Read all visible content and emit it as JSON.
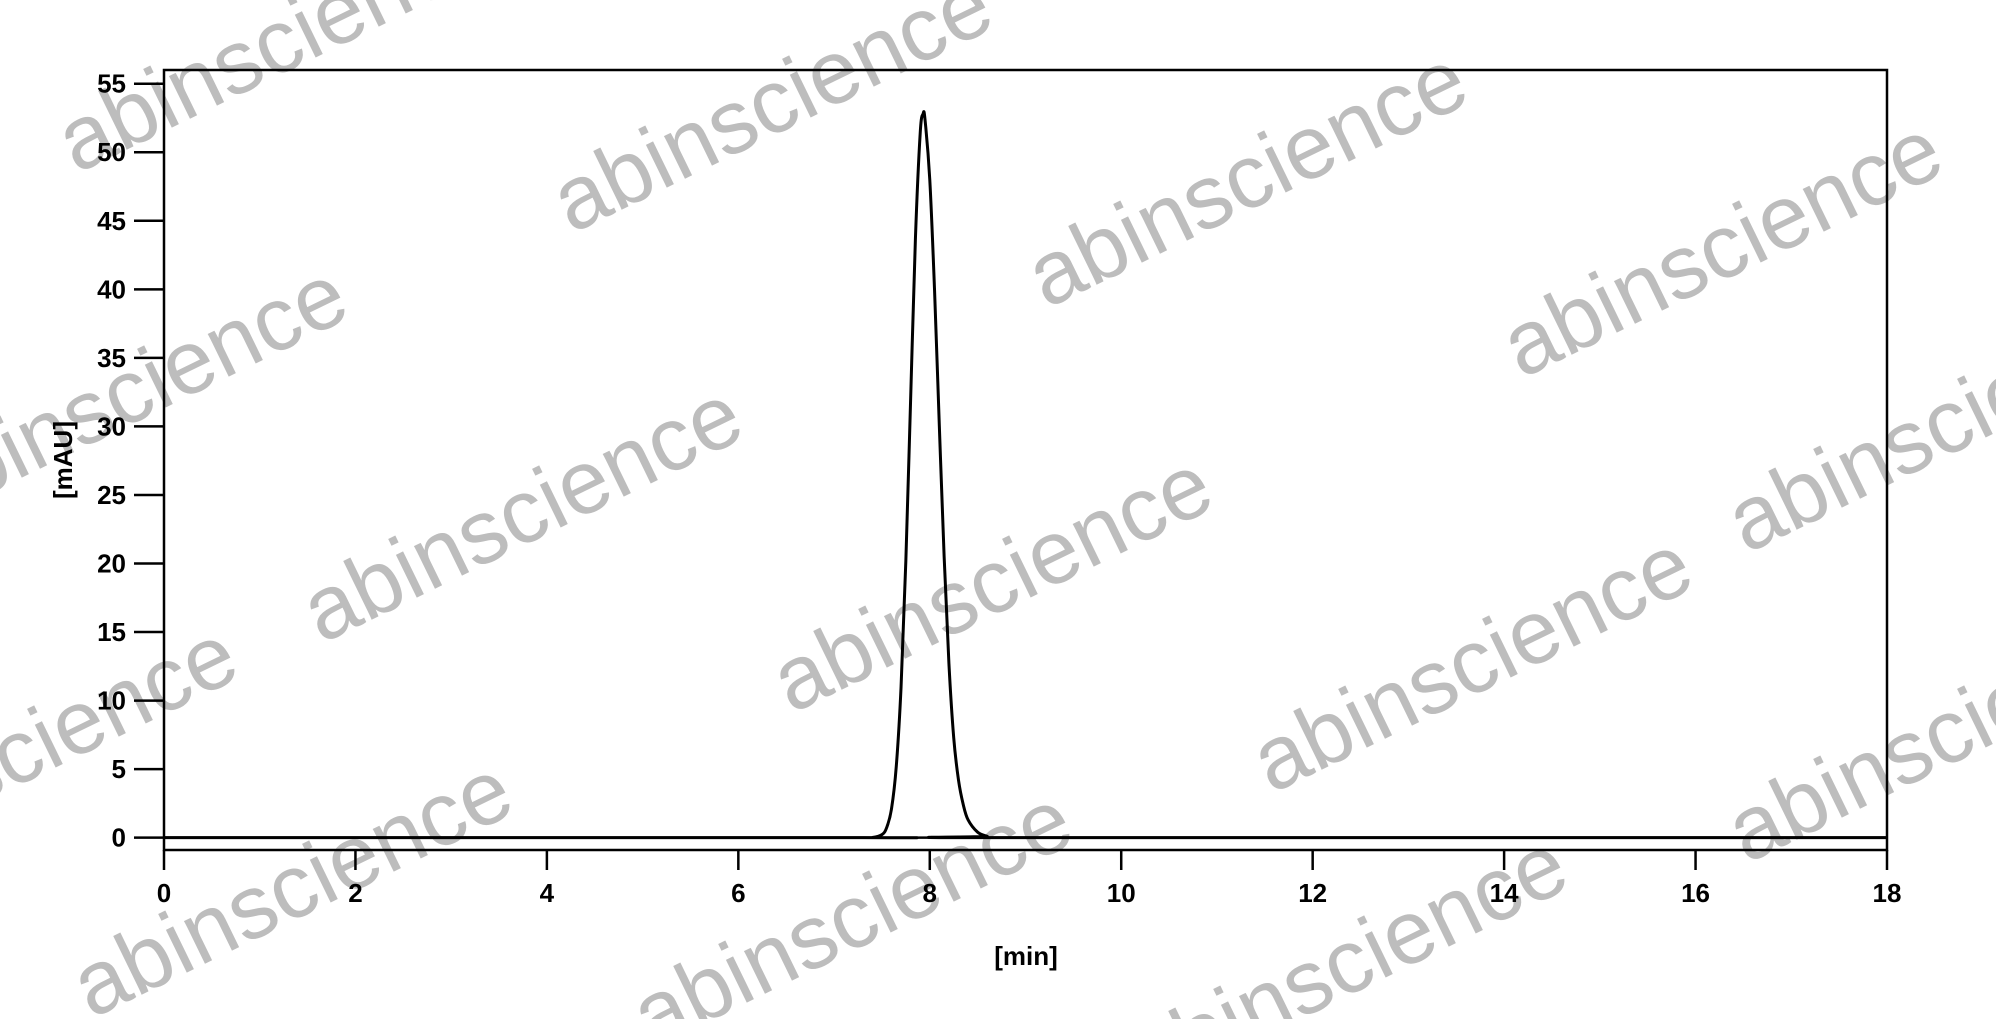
{
  "chart_data": {
    "type": "line",
    "title": "",
    "xlabel": "[min]",
    "ylabel": "[mAU]",
    "xlim": [
      0,
      18
    ],
    "ylim": [
      -0.9,
      56
    ],
    "xticks": [
      0,
      2,
      4,
      6,
      8,
      10,
      12,
      14,
      16,
      18
    ],
    "yticks": [
      0,
      5,
      10,
      15,
      20,
      25,
      30,
      35,
      40,
      45,
      50,
      55
    ],
    "grid": false,
    "line_color": "#000000",
    "series": [
      {
        "x": [
          0,
          7.3,
          7.4,
          7.5,
          7.55,
          7.6,
          7.65,
          7.7,
          7.75,
          7.8,
          7.85,
          7.9,
          7.93,
          7.95,
          8.0,
          8.05,
          8.1,
          8.15,
          8.2,
          8.25,
          8.3,
          8.35,
          8.4,
          8.5,
          8.6,
          8.7,
          18
        ],
        "y": [
          0,
          0,
          0.01,
          0.22,
          0.74,
          2.1,
          5.2,
          11.0,
          20.2,
          32.0,
          43.7,
          51.4,
          52.8,
          52.4,
          48.0,
          39.9,
          30.0,
          20.5,
          12.7,
          7.3,
          4.2,
          2.4,
          1.3,
          0.4,
          0.1,
          0,
          0
        ]
      }
    ]
  },
  "watermark": {
    "text": "abinscience",
    "color": "#bdbdbd"
  }
}
